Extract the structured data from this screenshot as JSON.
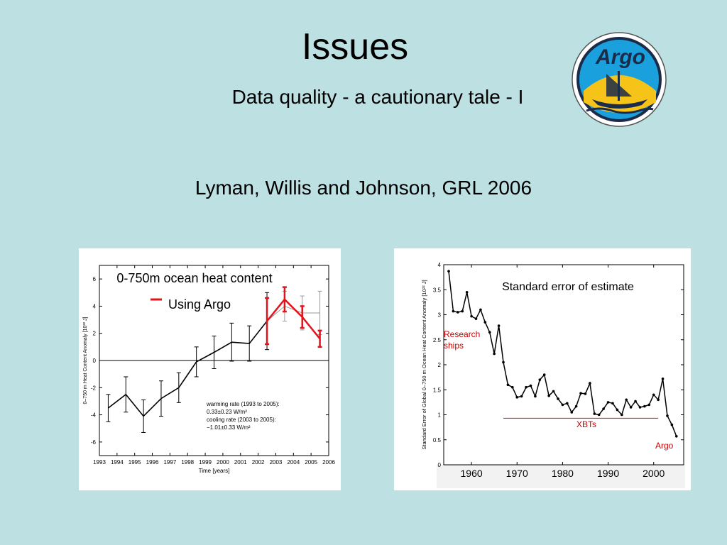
{
  "slide": {
    "title": "Issues",
    "subtitle": "Data quality - a cautionary tale - I",
    "citation": "Lyman, Willis and Johnson, GRL  2006",
    "logo_text": "Argo"
  },
  "colors": {
    "background": "#bde0e3",
    "argo_series": "#e0141c",
    "argo_label": "#cc0000",
    "logo_blue": "#1aa0dc",
    "logo_yellow": "#f6c419"
  },
  "chart_data": [
    {
      "type": "line",
      "title": "0-750m ocean heat content",
      "xlabel": "Time [years]",
      "ylabel": "0–750 m Heat Content Anomaly [10²² J]",
      "xlim": [
        1993,
        2006
      ],
      "ylim": [
        -7,
        7
      ],
      "x_ticks": [
        1993,
        1994,
        1995,
        1996,
        1997,
        1998,
        1999,
        2000,
        2001,
        2002,
        2003,
        2004,
        2005,
        2006
      ],
      "y_ticks": [
        -6,
        -4,
        -2,
        0,
        2,
        4,
        6
      ],
      "zero_line": true,
      "legend": {
        "position": "top-center",
        "entries": [
          {
            "label": "Using Argo",
            "series": "Using Argo"
          }
        ]
      },
      "annotation_lines": [
        "warming rate (1993 to 2005):",
        "0.33±0.23 W/m²",
        "cooling rate (2003 to 2005):",
        "−1.01±0.33 W/m²"
      ],
      "series": [
        {
          "name": "",
          "color": "#000000",
          "x": [
            1993.5,
            1994.5,
            1995.5,
            1996.5,
            1997.5,
            1998.5,
            1999.5,
            2000.5,
            2001.5,
            2002.5
          ],
          "y": [
            -3.5,
            -2.5,
            -4.1,
            -2.8,
            -2.0,
            -0.1,
            0.6,
            1.35,
            1.25,
            2.9
          ],
          "err": [
            1.0,
            1.3,
            1.2,
            1.3,
            1.1,
            1.1,
            1.2,
            1.4,
            1.3,
            2.1
          ]
        },
        {
          "name": "",
          "color": "#999999",
          "x": [
            2003.5,
            2004.5,
            2005.5
          ],
          "y": [
            4.0,
            3.5,
            3.5
          ],
          "err": [
            1.1,
            1.25,
            1.6
          ]
        },
        {
          "name": "Using Argo",
          "color": "#e0141c",
          "x": [
            2002.5,
            2003.5,
            2004.5,
            2005.5
          ],
          "y": [
            2.9,
            4.5,
            3.2,
            1.6
          ],
          "err": [
            1.7,
            0.9,
            0.8,
            0.6
          ]
        }
      ]
    },
    {
      "type": "line",
      "title": "Standard error of estimate",
      "xlabel": "",
      "ylabel": "Standard Error of Global 0–750 m Ocean Heat Content Anomaly [10²² J]",
      "xlim": [
        1955,
        2005.5
      ],
      "ylim": [
        0,
        4
      ],
      "x_ticks": [
        1960,
        1970,
        1980,
        1990,
        2000
      ],
      "y_ticks": [
        0,
        0.5,
        1,
        1.5,
        2,
        2.5,
        3,
        3.5,
        4
      ],
      "x_tick_labels": [
        "1960",
        "1970",
        "1980",
        "1990",
        "2000"
      ],
      "y_tick_labels": [
        "0",
        "0.5",
        "1",
        "1.5",
        "2",
        "2.5",
        "3",
        "3.5",
        "4"
      ],
      "annotations": [
        {
          "text": "Research",
          "color": "#cc0000"
        },
        {
          "text": "ships",
          "color": "#cc0000"
        },
        {
          "text": "XBTs",
          "color": "#cc0000",
          "line_from": 1967,
          "line_to": 2001,
          "line_y": 0.93
        },
        {
          "text": "Argo",
          "color": "#cc0000"
        }
      ],
      "series": [
        {
          "name": "",
          "x": [
            1955,
            1956,
            1957,
            1958,
            1959,
            1960,
            1961,
            1962,
            1963,
            1964,
            1965,
            1966,
            1967,
            1968,
            1969,
            1970,
            1971,
            1972,
            1973,
            1974,
            1975,
            1976,
            1977,
            1978,
            1979,
            1980,
            1981,
            1982,
            1983,
            1984,
            1985,
            1986,
            1987,
            1988,
            1989,
            1990,
            1991,
            1992,
            1993,
            1994,
            1995,
            1996,
            1997,
            1998,
            1999,
            2000,
            2001,
            2002,
            2003,
            2004,
            2005
          ],
          "y": [
            3.87,
            3.07,
            3.05,
            3.07,
            3.45,
            2.97,
            2.92,
            3.1,
            2.85,
            2.65,
            2.22,
            2.78,
            2.05,
            1.6,
            1.55,
            1.35,
            1.37,
            1.55,
            1.58,
            1.37,
            1.7,
            1.8,
            1.38,
            1.47,
            1.32,
            1.2,
            1.23,
            1.05,
            1.17,
            1.43,
            1.42,
            1.63,
            1.02,
            1.0,
            1.12,
            1.25,
            1.23,
            1.1,
            1.0,
            1.3,
            1.15,
            1.27,
            1.15,
            1.17,
            1.2,
            1.4,
            1.3,
            1.72,
            0.98,
            0.8,
            0.57
          ]
        }
      ]
    }
  ]
}
